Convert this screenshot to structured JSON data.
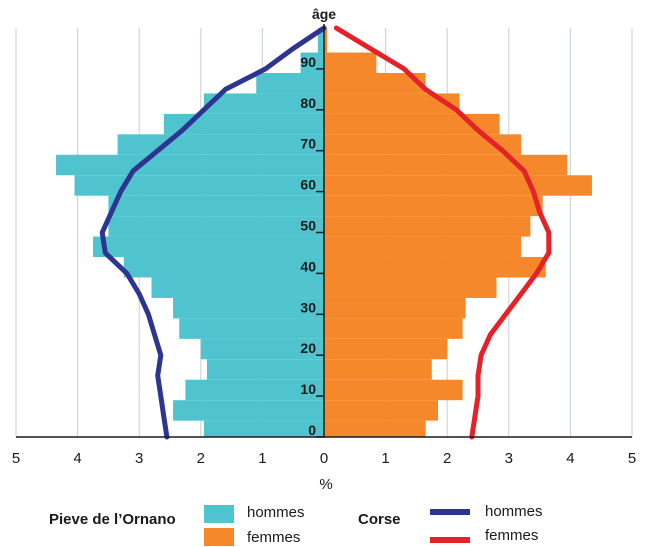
{
  "chart_data": {
    "type": "population-pyramid",
    "title": "",
    "xlabel": "%",
    "ylabel": "âge",
    "xlim": [
      -5,
      5
    ],
    "ylim": [
      0,
      100
    ],
    "x_ticks": [
      5,
      4,
      3,
      2,
      1,
      0,
      1,
      2,
      3,
      4,
      5
    ],
    "y_ticks": [
      0,
      10,
      20,
      30,
      40,
      50,
      60,
      70,
      80,
      90
    ],
    "grid": "vertical",
    "age_bands": [
      [
        0,
        4
      ],
      [
        4,
        9
      ],
      [
        9,
        14
      ],
      [
        14,
        19
      ],
      [
        19,
        24
      ],
      [
        24,
        29
      ],
      [
        29,
        34
      ],
      [
        34,
        39
      ],
      [
        39,
        44
      ],
      [
        44,
        49
      ],
      [
        49,
        54
      ],
      [
        54,
        59
      ],
      [
        59,
        64
      ],
      [
        64,
        69
      ],
      [
        69,
        74
      ],
      [
        74,
        79
      ],
      [
        79,
        84
      ],
      [
        84,
        89
      ],
      [
        89,
        94
      ],
      [
        94,
        100
      ]
    ],
    "series": [
      {
        "name": "hommes",
        "group": "Pieve de l'Ornano",
        "kind": "bar",
        "side": "left",
        "color": "#4fc4cf",
        "values": [
          1.95,
          2.45,
          2.25,
          1.9,
          2.0,
          2.35,
          2.45,
          2.8,
          3.25,
          3.75,
          3.5,
          3.5,
          4.05,
          4.35,
          3.35,
          2.6,
          1.95,
          1.1,
          0.38,
          0.1
        ]
      },
      {
        "name": "femmes",
        "group": "Pieve de l'Ornano",
        "kind": "bar",
        "side": "right",
        "color": "#f5882a",
        "values": [
          1.65,
          1.85,
          2.25,
          1.75,
          2.0,
          2.25,
          2.3,
          2.8,
          3.6,
          3.2,
          3.35,
          3.55,
          4.35,
          3.95,
          3.2,
          2.85,
          2.2,
          1.65,
          0.85,
          0.05
        ]
      },
      {
        "name": "hommes",
        "group": "Corse",
        "kind": "line",
        "side": "left",
        "color": "#2d3591",
        "points": [
          [
            2.55,
            0
          ],
          [
            2.6,
            5
          ],
          [
            2.65,
            10
          ],
          [
            2.7,
            15
          ],
          [
            2.65,
            20
          ],
          [
            2.75,
            25
          ],
          [
            2.85,
            30
          ],
          [
            3.0,
            35
          ],
          [
            3.2,
            40
          ],
          [
            3.55,
            45
          ],
          [
            3.6,
            50
          ],
          [
            3.45,
            55
          ],
          [
            3.3,
            60
          ],
          [
            3.1,
            65
          ],
          [
            2.7,
            70
          ],
          [
            2.3,
            75
          ],
          [
            1.95,
            80
          ],
          [
            1.6,
            85
          ],
          [
            0.95,
            90
          ],
          [
            0.5,
            95
          ],
          [
            0.0,
            100
          ]
        ]
      },
      {
        "name": "femmes",
        "group": "Corse",
        "kind": "line",
        "side": "right",
        "color": "#e42229",
        "points": [
          [
            2.4,
            0
          ],
          [
            2.45,
            5
          ],
          [
            2.5,
            10
          ],
          [
            2.5,
            15
          ],
          [
            2.55,
            20
          ],
          [
            2.7,
            25
          ],
          [
            2.95,
            30
          ],
          [
            3.2,
            35
          ],
          [
            3.45,
            40
          ],
          [
            3.65,
            45
          ],
          [
            3.65,
            50
          ],
          [
            3.5,
            55
          ],
          [
            3.4,
            60
          ],
          [
            3.25,
            65
          ],
          [
            2.9,
            70
          ],
          [
            2.5,
            75
          ],
          [
            2.15,
            80
          ],
          [
            1.65,
            85
          ],
          [
            1.3,
            90
          ],
          [
            0.75,
            95
          ],
          [
            0.2,
            100
          ]
        ]
      }
    ]
  },
  "legend": {
    "group_a": "Pieve de l’Ornano",
    "group_b": "Corse",
    "a_men": "hommes",
    "a_women": "femmes",
    "b_men": "hommes",
    "b_women": "femmes"
  }
}
